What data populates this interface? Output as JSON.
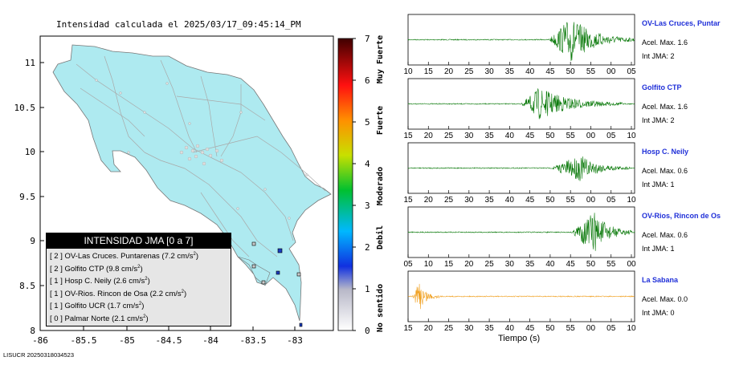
{
  "map": {
    "title": "Intensidad calculada el 2025/03/17_09:45:14_PM",
    "lat_ticks": [
      "11",
      "10.5",
      "10",
      "9.5",
      "9",
      "8.5",
      "8"
    ],
    "lon_ticks": [
      "-86",
      "-85.5",
      "-85",
      "-84.5",
      "-84",
      "-83.5",
      "-83"
    ]
  },
  "colorbar": {
    "ticks": [
      "0",
      "1",
      "2",
      "3",
      "4",
      "5",
      "6",
      "7"
    ],
    "labels": [
      "No sentido",
      "Debil",
      "Moderado",
      "Fuerte",
      "Muy Fuerte"
    ]
  },
  "legend": {
    "header": "INTENSIDAD JMA [0 a 7]",
    "rows": [
      {
        "level": "[ 2 ]",
        "text": "OV-Las Cruces. Puntarenas (7.2 cm/s",
        "sup": "2",
        "end": ")"
      },
      {
        "level": "[ 2 ]",
        "text": "Golfito CTP (9.8 cm/s",
        "sup": "2",
        "end": ")"
      },
      {
        "level": "[ 1 ]",
        "text": "Hosp C. Neily (2.6 cm/s",
        "sup": "2",
        "end": ")"
      },
      {
        "level": "[ 1 ]",
        "text": "OV-Rios. Rincon de Osa (2.2 cm/s",
        "sup": "2",
        "end": ")"
      },
      {
        "level": "[ 1 ]",
        "text": "Golfito UCR (1.7 cm/s",
        "sup": "2",
        "end": ")"
      },
      {
        "level": "[ 0 ]",
        "text": "Palmar Norte (2.1 cm/s",
        "sup": "2",
        "end": ")"
      }
    ]
  },
  "footer_code": "LISUCR 20250318034523",
  "stations": [
    {
      "name": "OV-Las Cruces, Puntar",
      "acel": "Acel. Max. 1.6",
      "int": "Int JMA: 2",
      "color": "#0b7a0b",
      "ticks": [
        "10",
        "15",
        "20",
        "25",
        "30",
        "35",
        "40",
        "45",
        "50",
        "55",
        "00",
        "05"
      ]
    },
    {
      "name": "Golfito CTP",
      "acel": "Acel. Max. 1.6",
      "int": "Int JMA: 2",
      "color": "#0b7a0b",
      "ticks": [
        "15",
        "20",
        "25",
        "30",
        "35",
        "40",
        "45",
        "50",
        "55",
        "00",
        "05",
        "10"
      ]
    },
    {
      "name": "Hosp C. Neily",
      "acel": "Acel. Max. 0.6",
      "int": "Int JMA: 1",
      "color": "#0b7a0b",
      "ticks": [
        "15",
        "20",
        "25",
        "30",
        "35",
        "40",
        "45",
        "50",
        "55",
        "00",
        "05",
        "10"
      ]
    },
    {
      "name": "OV-Rios, Rincon de Os",
      "acel": "Acel. Max. 0.6",
      "int": "Int JMA: 1",
      "color": "#0b7a0b",
      "ticks": [
        "05",
        "10",
        "15",
        "20",
        "25",
        "30",
        "35",
        "40",
        "45",
        "50",
        "55",
        "00"
      ]
    },
    {
      "name": "La Sabana",
      "acel": "Acel. Max. 0.0",
      "int": "Int JMA: 0",
      "color": "#f0a020",
      "ticks": [
        "15",
        "20",
        "25",
        "30",
        "35",
        "40",
        "45",
        "50",
        "55",
        "00",
        "05",
        "10"
      ]
    }
  ],
  "time_label": "Tiempo (s)"
}
